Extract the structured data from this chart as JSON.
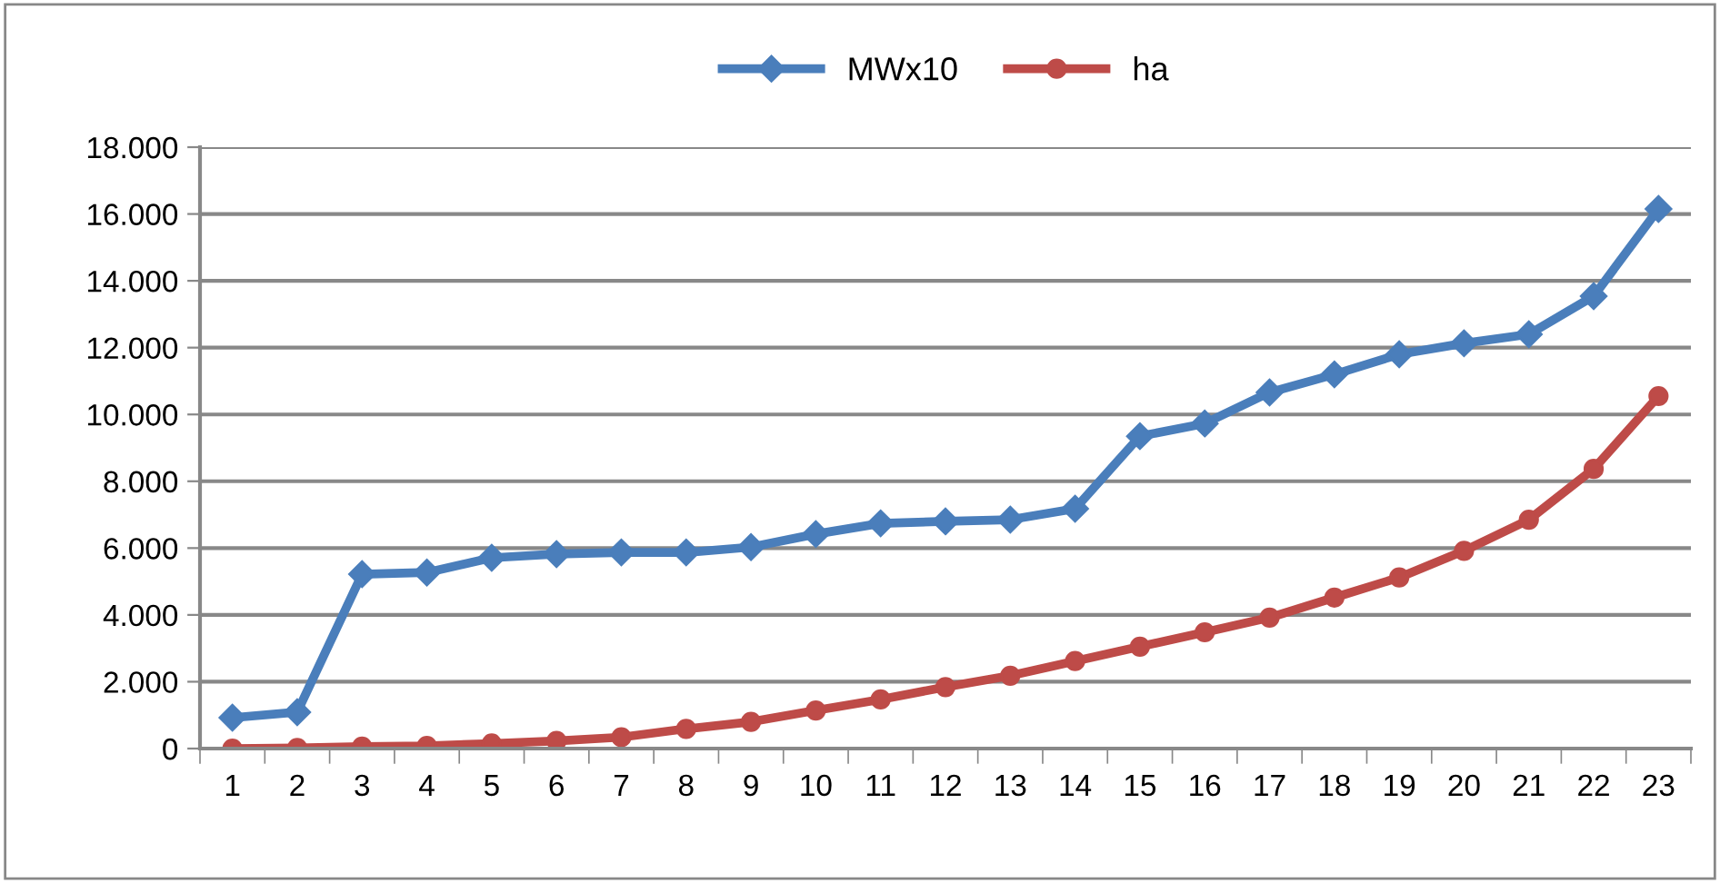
{
  "chart_data": {
    "type": "line",
    "categories": [
      "1",
      "2",
      "3",
      "4",
      "5",
      "6",
      "7",
      "8",
      "9",
      "10",
      "11",
      "12",
      "13",
      "14",
      "15",
      "16",
      "17",
      "18",
      "19",
      "20",
      "21",
      "22",
      "23"
    ],
    "series": [
      {
        "name": "MWx10",
        "color": "#4a7ebb",
        "marker": "diamond",
        "values": [
          925,
          1090,
          5220,
          5270,
          5710,
          5820,
          5870,
          5870,
          6030,
          6420,
          6740,
          6800,
          6850,
          7180,
          9350,
          9730,
          10660,
          11200,
          11800,
          12130,
          12400,
          13540,
          16150
        ]
      },
      {
        "name": "ha",
        "color": "#be4b48",
        "marker": "circle",
        "values": [
          0,
          20,
          60,
          80,
          150,
          230,
          340,
          590,
          800,
          1140,
          1470,
          1840,
          2180,
          2620,
          3050,
          3480,
          3920,
          4520,
          5120,
          5920,
          6850,
          8370,
          10550
        ]
      }
    ],
    "ylim": [
      0,
      18000
    ],
    "yticks": [
      0,
      {
        "value": 2000,
        "label": "2.000"
      },
      {
        "value": 4000,
        "label": "4.000"
      },
      {
        "value": 6000,
        "label": "6.000"
      },
      {
        "value": 8000,
        "label": "8.000"
      },
      {
        "value": 10000,
        "label": "10.000"
      },
      {
        "value": 12000,
        "label": "12.000"
      },
      {
        "value": 14000,
        "label": "14.000"
      },
      {
        "value": 16000,
        "label": "16.000"
      },
      {
        "value": 18000,
        "label": "18.000"
      }
    ],
    "grid": "y",
    "legend": "top",
    "line_style": "solid"
  }
}
